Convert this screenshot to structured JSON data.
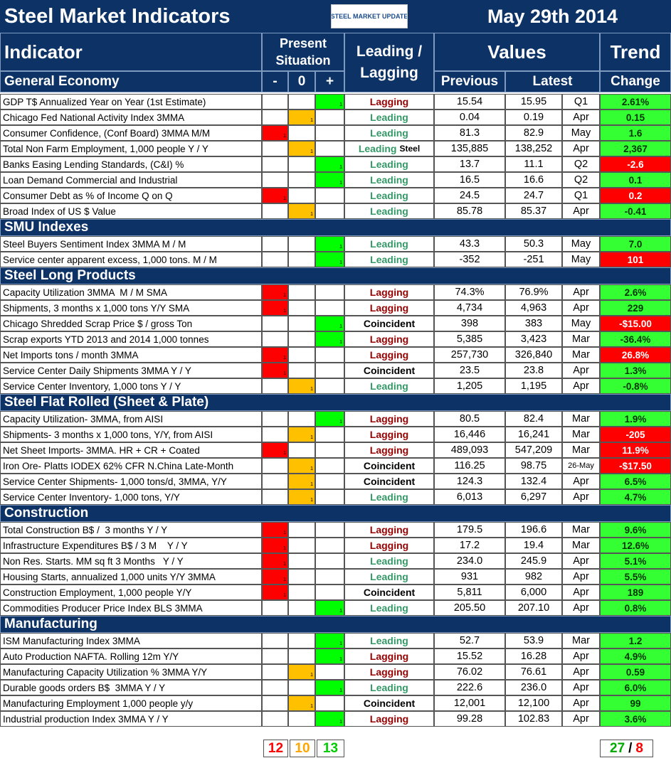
{
  "header": {
    "title": "Steel Market Indicators",
    "logo": "STEEL MARKET UPDATE",
    "date": "May 29th 2014",
    "indicator": "Indicator",
    "present": "Present",
    "situation": "Situation",
    "situation_cols": [
      "-",
      "0",
      "+"
    ],
    "lead_lag": "Leading / Lagging",
    "values": "Values",
    "previous": "Previous",
    "latest": "Latest",
    "trend": "Trend",
    "change": "Change"
  },
  "situation_mark": "1",
  "situation_colors": {
    "-": "#ff0000",
    "0": "#ffc000",
    "+": "#00ff00"
  },
  "lead_colors": {
    "Lagging": "#990000",
    "Leading": "#339966",
    "Coincident": "#000000"
  },
  "change_colors": {
    "green": {
      "bg": "#33ff33",
      "fg": "#003300"
    },
    "red": {
      "bg": "#ff0000",
      "fg": "#ffffff"
    }
  },
  "sections": [
    {
      "title": "General Economy",
      "rows": [
        {
          "name": "GDP T$ Annualized Year on Year (1st Estimate)",
          "situation": "+",
          "lead": "Lagging",
          "previous": "15.54",
          "latest": "15.95",
          "period": "Q1",
          "change": "2.61%",
          "change_color": "green"
        },
        {
          "name": "Chicago Fed National Activity Index 3MMA",
          "situation": "0",
          "lead": "Leading",
          "previous": "0.04",
          "latest": "0.19",
          "period": "Apr",
          "change": "0.15",
          "change_color": "green"
        },
        {
          "name": "Consumer Confidence, (Conf Board) 3MMA M/M",
          "situation": "-",
          "lead": "Leading",
          "previous": "81.3",
          "latest": "82.9",
          "period": "May",
          "change": "1.6",
          "change_color": "green"
        },
        {
          "name": "Total Non Farm Employment, 1,000 people Y / Y",
          "situation": "0",
          "lead": "Leading",
          "lead_note": "Steel",
          "previous": "135,885",
          "latest": "138,252",
          "period": "Apr",
          "change": "2,367",
          "change_color": "green"
        },
        {
          "name": "Banks Easing Lending Standards, (C&I) %",
          "situation": "+",
          "lead": "Leading",
          "previous": "13.7",
          "latest": "11.1",
          "period": "Q2",
          "change": "-2.6",
          "change_color": "red"
        },
        {
          "name": "Loan Demand Commercial and Industrial",
          "situation": "+",
          "lead": "Leading",
          "previous": "16.5",
          "latest": "16.6",
          "period": "Q2",
          "change": "0.1",
          "change_color": "green"
        },
        {
          "name": "Consumer Debt as % of Income Q on Q",
          "situation": "-",
          "lead": "Leading",
          "previous": "24.5",
          "latest": "24.7",
          "period": "Q1",
          "change": "0.2",
          "change_color": "red"
        },
        {
          "name": "Broad Index of US $ Value",
          "situation": "0",
          "lead": "Leading",
          "previous": "85.78",
          "latest": "85.37",
          "period": "Apr",
          "change": "-0.41",
          "change_color": "green"
        }
      ]
    },
    {
      "title": "SMU Indexes",
      "rows": [
        {
          "name": "Steel Buyers Sentiment Index 3MMA M / M",
          "situation": "+",
          "lead": "Leading",
          "previous": "43.3",
          "latest": "50.3",
          "period": "May",
          "change": "7.0",
          "change_color": "green"
        },
        {
          "name": "Service center apparent excess, 1,000 tons. M / M",
          "situation": "+",
          "lead": "Leading",
          "previous": "-352",
          "latest": "-251",
          "period": "May",
          "change": "101",
          "change_color": "red"
        }
      ]
    },
    {
      "title": "Steel Long Products",
      "rows": [
        {
          "name": "Capacity Utilization 3MMA  M / M SMA",
          "situation": "-",
          "lead": "Lagging",
          "previous": "74.3%",
          "latest": "76.9%",
          "period": "Apr",
          "change": "2.6%",
          "change_color": "green"
        },
        {
          "name": "Shipments, 3 months x 1,000 tons Y/Y SMA",
          "situation": "-",
          "lead": "Lagging",
          "previous": "4,734",
          "latest": "4,963",
          "period": "Apr",
          "change": "229",
          "change_color": "green"
        },
        {
          "name": "Chicago Shredded Scrap Price $ / gross Ton",
          "situation": "+",
          "lead": "Coincident",
          "previous": "398",
          "latest": "383",
          "period": "May",
          "change": "-$15.00",
          "change_color": "red"
        },
        {
          "name": "Scrap exports YTD 2013 and 2014 1,000 tonnes",
          "situation": "+",
          "lead": "Lagging",
          "previous": "5,385",
          "latest": "3,423",
          "period": "Mar",
          "change": "-36.4%",
          "change_color": "green"
        },
        {
          "name": "Net Imports tons / month 3MMA",
          "situation": "-",
          "lead": "Lagging",
          "previous": "257,730",
          "latest": "326,840",
          "period": "Mar",
          "change": "26.8%",
          "change_color": "red"
        },
        {
          "name": "Service Center Daily Shipments 3MMA Y / Y",
          "situation": "-",
          "lead": "Coincident",
          "previous": "23.5",
          "latest": "23.8",
          "period": "Apr",
          "change": "1.3%",
          "change_color": "green"
        },
        {
          "name": "Service Center Inventory, 1,000 tons Y / Y",
          "situation": "0",
          "lead": "Leading",
          "previous": "1,205",
          "latest": "1,195",
          "period": "Apr",
          "change": "-0.8%",
          "change_color": "green"
        }
      ]
    },
    {
      "title": "Steel Flat Rolled (Sheet & Plate)",
      "rows": [
        {
          "name": "Capacity Utilization- 3MMA, from AISI",
          "situation": "+",
          "lead": "Lagging",
          "previous": "80.5",
          "latest": "82.4",
          "period": "Mar",
          "change": "1.9%",
          "change_color": "green"
        },
        {
          "name": "Shipments- 3 months x 1,000 tons, Y/Y, from AISI",
          "situation": "0",
          "lead": "Lagging",
          "previous": "16,446",
          "latest": "16,241",
          "period": "Mar",
          "change": "-205",
          "change_color": "red"
        },
        {
          "name": "Net Sheet Imports- 3MMA. HR + CR + Coated",
          "situation": "-",
          "lead": "Lagging",
          "previous": "489,093",
          "latest": "547,209",
          "period": "Mar",
          "change": "11.9%",
          "change_color": "red"
        },
        {
          "name": "Iron Ore- Platts IODEX 62% CFR N.China Late-Month",
          "situation": "0",
          "lead": "Coincident",
          "previous": "116.25",
          "latest": "98.75",
          "period": "26-May",
          "change": "-$17.50",
          "change_color": "red"
        },
        {
          "name": "Service Center Shipments- 1,000 tons/d, 3MMA, Y/Y",
          "situation": "0",
          "lead": "Coincident",
          "previous": "124.3",
          "latest": "132.4",
          "period": "Apr",
          "change": "6.5%",
          "change_color": "green"
        },
        {
          "name": "Service Center Inventory- 1,000 tons, Y/Y",
          "situation": "0",
          "lead": "Leading",
          "previous": "6,013",
          "latest": "6,297",
          "period": "Apr",
          "change": "4.7%",
          "change_color": "green"
        }
      ]
    },
    {
      "title": "Construction",
      "rows": [
        {
          "name": "Total Construction B$ /  3 months Y / Y",
          "situation": "-",
          "lead": "Lagging",
          "previous": "179.5",
          "latest": "196.6",
          "period": "Mar",
          "change": "9.6%",
          "change_color": "green"
        },
        {
          "name": "Infrastructure Expenditures B$ / 3 M    Y / Y",
          "situation": "-",
          "lead": "Lagging",
          "previous": "17.2",
          "latest": "19.4",
          "period": "Mar",
          "change": "12.6%",
          "change_color": "green"
        },
        {
          "name": "Non Res. Starts. MM sq ft 3 Months   Y / Y",
          "situation": "-",
          "lead": "Leading",
          "previous": "234.0",
          "latest": "245.9",
          "period": "Apr",
          "change": "5.1%",
          "change_color": "green"
        },
        {
          "name": "Housing Starts, annualized 1,000 units Y/Y 3MMA",
          "situation": "-",
          "lead": "Leading",
          "previous": "931",
          "latest": "982",
          "period": "Apr",
          "change": "5.5%",
          "change_color": "green"
        },
        {
          "name": "Construction Employment, 1,000 people Y/Y",
          "situation": "-",
          "lead": "Coincident",
          "previous": "5,811",
          "latest": "6,000",
          "period": "Apr",
          "change": "189",
          "change_color": "green"
        },
        {
          "name": "Commodities Producer Price Index BLS 3MMA",
          "situation": "+",
          "lead": "Leading",
          "previous": "205.50",
          "latest": "207.10",
          "period": "Apr",
          "change": "0.8%",
          "change_color": "green"
        }
      ]
    },
    {
      "title": "Manufacturing",
      "rows": [
        {
          "name": "ISM Manufacturing Index 3MMA",
          "situation": "+",
          "lead": "Leading",
          "previous": "52.7",
          "latest": "53.9",
          "period": "Mar",
          "change": "1.2",
          "change_color": "green"
        },
        {
          "name": "Auto Production NAFTA. Rolling 12m Y/Y",
          "situation": "+",
          "lead": "Lagging",
          "previous": "15.52",
          "latest": "16.28",
          "period": "Apr",
          "change": "4.9%",
          "change_color": "green"
        },
        {
          "name": "Manufacturing Capacity Utilization % 3MMA Y/Y",
          "situation": "0",
          "lead": "Lagging",
          "previous": "76.02",
          "latest": "76.61",
          "period": "Apr",
          "change": "0.59",
          "change_color": "green"
        },
        {
          "name": "Durable goods orders B$  3MMA Y / Y",
          "situation": "+",
          "lead": "Leading",
          "previous": "222.6",
          "latest": "236.0",
          "period": "Apr",
          "change": "6.0%",
          "change_color": "green"
        },
        {
          "name": "Manufacturing Employment 1,000 people y/y",
          "situation": "0",
          "lead": "Coincident",
          "previous": "12,001",
          "latest": "12,100",
          "period": "Apr",
          "change": "99",
          "change_color": "green"
        },
        {
          "name": "Industrial production Index 3MMA Y / Y",
          "situation": "+",
          "lead": "Lagging",
          "previous": "99.28",
          "latest": "102.83",
          "period": "Apr",
          "change": "3.6%",
          "change_color": "green"
        }
      ]
    }
  ],
  "footer": {
    "counts": [
      {
        "value": 12,
        "color": "#ff0000"
      },
      {
        "value": 10,
        "color": "#ffa500"
      },
      {
        "value": 13,
        "color": "#00cc00"
      }
    ],
    "trend": {
      "up": 27,
      "up_color": "#00aa00",
      "sep": "/",
      "down": 8,
      "down_color": "#ff0000"
    }
  }
}
